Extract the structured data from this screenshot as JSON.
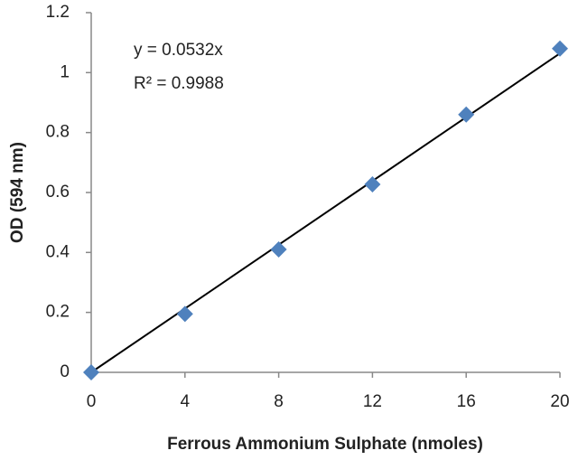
{
  "chart_data": {
    "type": "scatter",
    "x_label": "Ferrous Ammonium Sulphate (nmoles)",
    "y_label": "OD (594 nm)",
    "x": [
      0,
      4,
      8,
      12,
      16,
      20
    ],
    "values": [
      0,
      0.195,
      0.41,
      0.627,
      0.86,
      1.08
    ],
    "color": "#4f81bd",
    "xlim": [
      0,
      20
    ],
    "xticks": [
      0,
      4,
      8,
      12,
      16,
      20
    ],
    "ylim": [
      0,
      1.2
    ],
    "yticks": [
      0,
      0.2,
      0.4,
      0.6,
      0.8,
      1,
      1.2
    ],
    "grid": false,
    "trendline": {
      "slope": 0.0532,
      "equation": "y = 0.0532x",
      "r_squared": "R² = 0.9988"
    }
  }
}
